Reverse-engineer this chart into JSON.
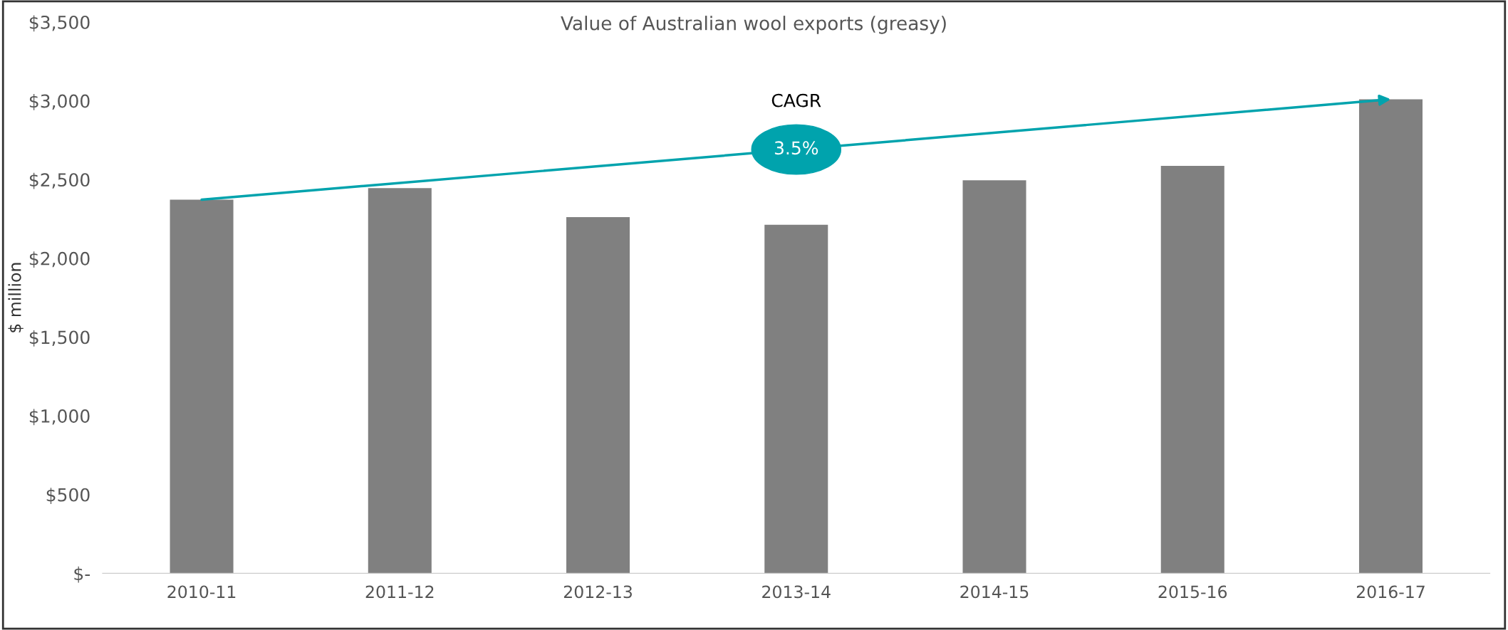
{
  "chart_data": {
    "type": "bar",
    "title": "Value of Australian wool exports (greasy)",
    "ylabel": "$ million",
    "categories": [
      "2010-11",
      "2011-12",
      "2012-13",
      "2013-14",
      "2014-15",
      "2015-16",
      "2016-17"
    ],
    "values": [
      2372,
      2446,
      2262,
      2213,
      2495,
      2587,
      3010
    ],
    "color": "#808080",
    "ylim": [
      0,
      3500
    ],
    "yticks": [
      {
        "value": 0,
        "label": "$-"
      },
      {
        "value": 500,
        "label": "$500"
      },
      {
        "value": 1000,
        "label": "$1,000"
      },
      {
        "value": 1500,
        "label": "$1,500"
      },
      {
        "value": 2000,
        "label": "$2,000"
      },
      {
        "value": 2500,
        "label": "$2,500"
      },
      {
        "value": 3000,
        "label": "$3,000"
      },
      {
        "value": 3500,
        "label": "$3,500"
      }
    ],
    "annotations": [
      "CAGR",
      "3.5%"
    ],
    "grid": false
  }
}
